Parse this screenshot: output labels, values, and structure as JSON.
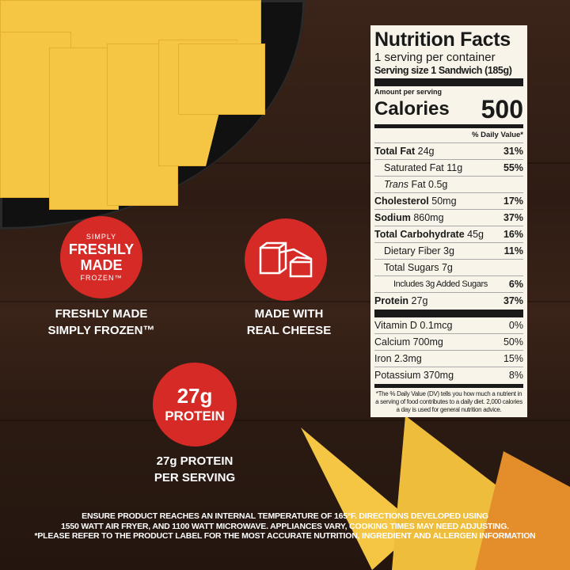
{
  "badges": [
    {
      "top": "SIMPLY",
      "main1": "FRESHLY",
      "main2": "MADE",
      "bottom": "FROZEN™",
      "caption1": "FRESHLY MADE",
      "caption2": "SIMPLY FROZEN™"
    },
    {
      "icon": "cheese-block-icon",
      "caption1": "MADE WITH",
      "caption2": "REAL CHEESE"
    },
    {
      "main1": "27g",
      "main2": "PROTEIN",
      "caption1": "27g PROTEIN",
      "caption2": "PER SERVING"
    }
  ],
  "colors": {
    "badge": "#d52a26",
    "label_bg": "#f8f4e9",
    "cheese": "#f4c644"
  },
  "nutrition": {
    "title": "Nutrition Facts",
    "servings": "1 serving per container",
    "serving_size": "Serving size 1 Sandwich (185g)",
    "amount_per_serving": "Amount per serving",
    "calories_label": "Calories",
    "calories": "500",
    "dv_header": "% Daily Value*",
    "rows": [
      {
        "name": "Total Fat",
        "amt": "24g",
        "dv": "31%",
        "bold": true,
        "indent": 0
      },
      {
        "name": "Saturated Fat",
        "amt": "11g",
        "dv": "55%",
        "bold": false,
        "indent": 1
      },
      {
        "name": "Trans",
        "amt": "Fat 0.5g",
        "dv": "",
        "bold": false,
        "indent": 1
      },
      {
        "name": "Cholesterol",
        "amt": "50mg",
        "dv": "17%",
        "bold": true,
        "indent": 0
      },
      {
        "name": "Sodium",
        "amt": "860mg",
        "dv": "37%",
        "bold": true,
        "indent": 0
      },
      {
        "name": "Total Carbohydrate",
        "amt": "45g",
        "dv": "16%",
        "bold": true,
        "indent": 0
      },
      {
        "name": "Dietary Fiber",
        "amt": "3g",
        "dv": "11%",
        "bold": false,
        "indent": 1
      },
      {
        "name": "Total Sugars",
        "amt": "7g",
        "dv": "",
        "bold": false,
        "indent": 1
      },
      {
        "name": "Includes 3g Added Sugars",
        "amt": "",
        "dv": "6%",
        "bold": false,
        "indent": 2
      },
      {
        "name": "Protein",
        "amt": "27g",
        "dv": "37%",
        "bold": true,
        "indent": 0
      }
    ],
    "vitamins": [
      {
        "name": "Vitamin D 0.1mcg",
        "dv": "0%"
      },
      {
        "name": "Calcium 700mg",
        "dv": "50%"
      },
      {
        "name": "Iron 2.3mg",
        "dv": "15%"
      },
      {
        "name": "Potassium 370mg",
        "dv": "8%"
      }
    ],
    "footnote": "*The % Daily Value (DV) tells you how much a nutrient in a serving of food contributes to a daily diet. 2,000 calories a day is used for general nutrition advice."
  },
  "disclaimer": [
    "ENSURE PRODUCT REACHES AN INTERNAL TEMPERATURE OF 165°F. DIRECTIONS DEVELOPED USING",
    "1550 WATT AIR FRYER, AND 1100 WATT MICROWAVE. APPLIANCES VARY, COOKING TIMES MAY NEED ADJUSTING.",
    "*PLEASE REFER TO THE PRODUCT LABEL FOR THE MOST ACCURATE NUTRITION, INGREDIENT AND ALLERGEN INFORMATION"
  ]
}
